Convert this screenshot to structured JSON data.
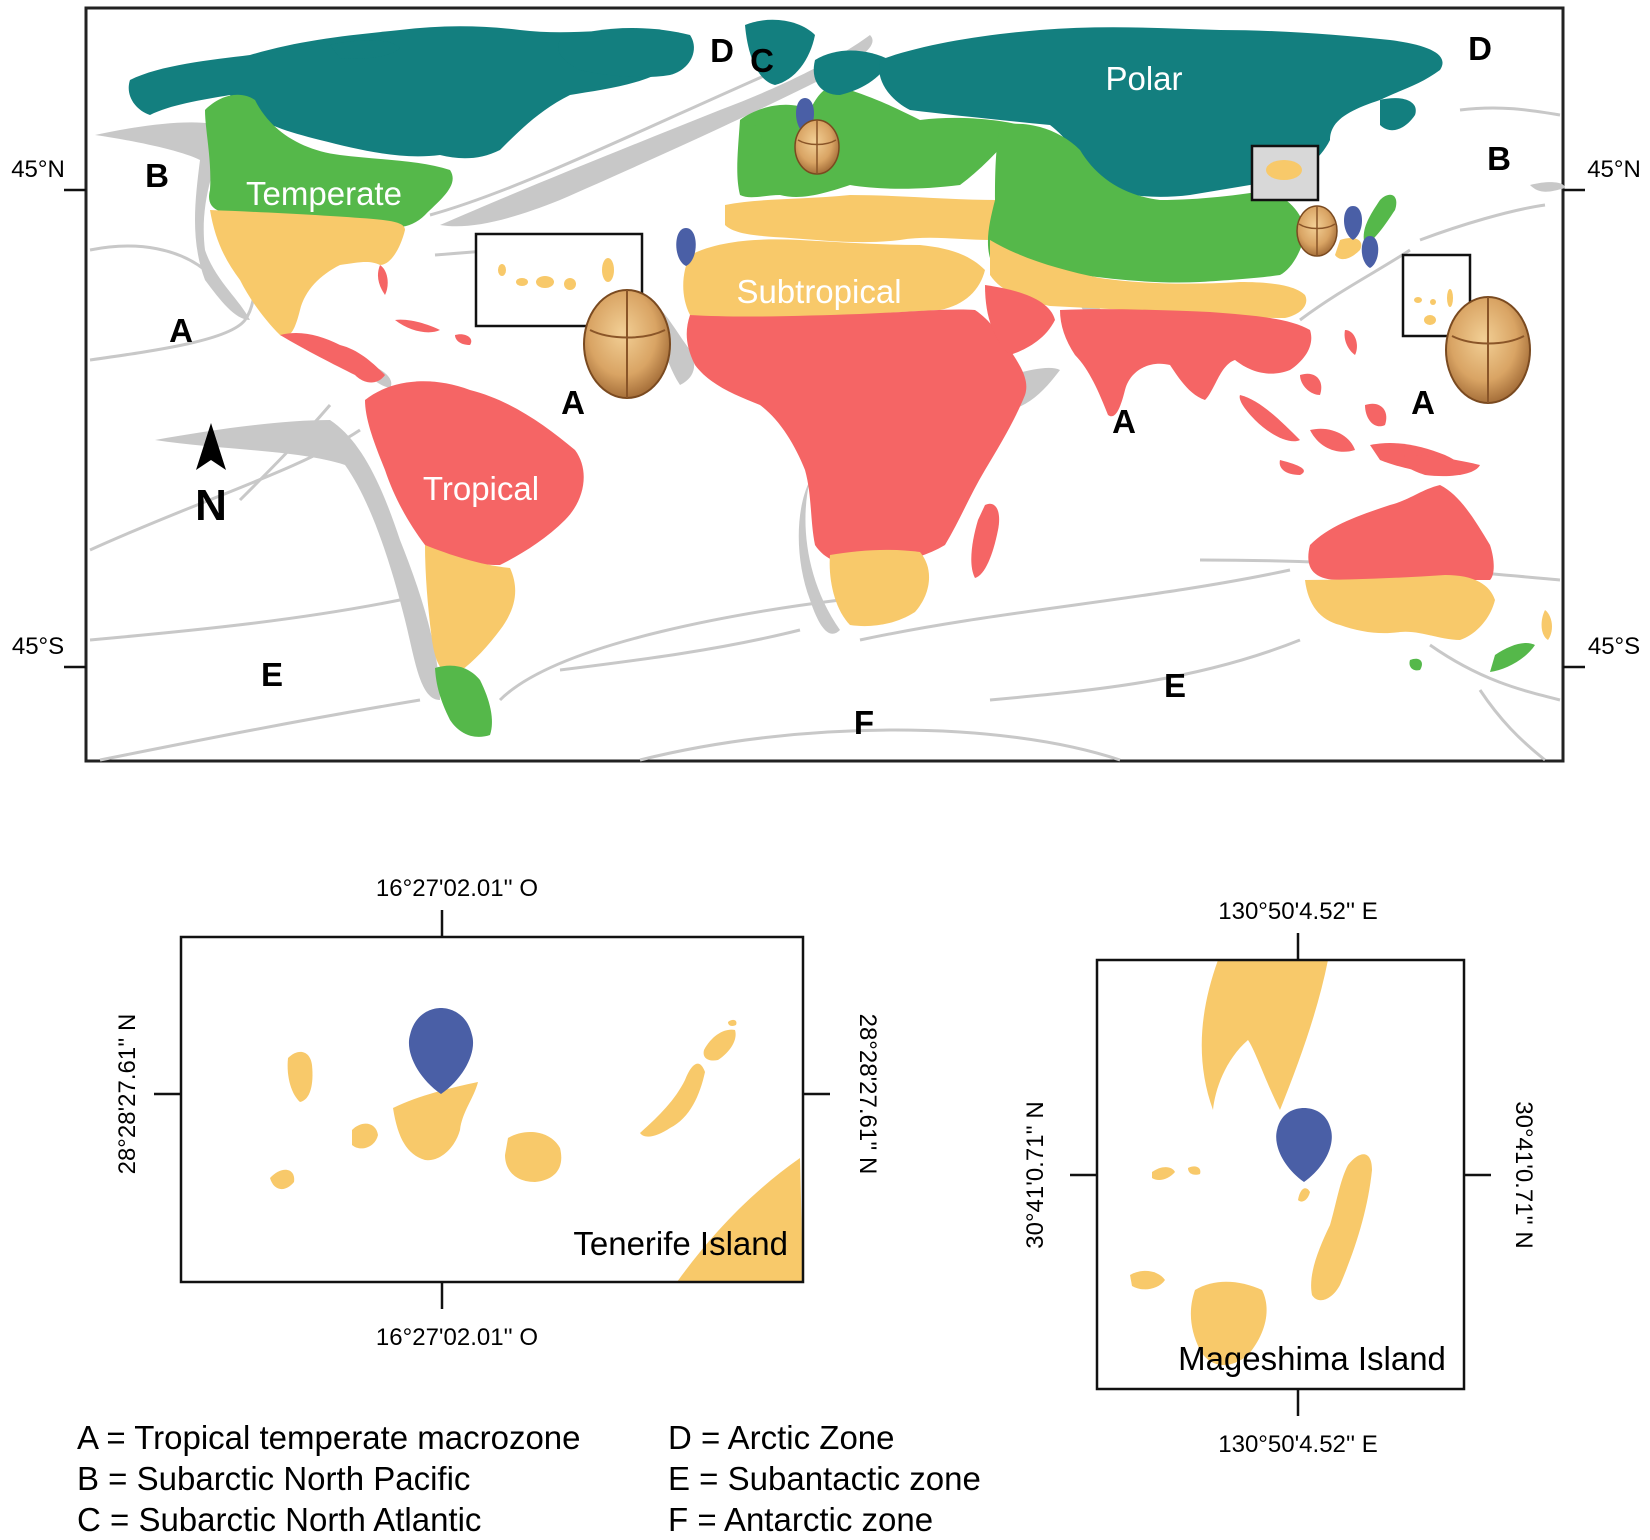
{
  "world_map": {
    "lat_labels": {
      "north": "45°N",
      "south": "45°S"
    },
    "zone_labels": {
      "polar": "Polar",
      "temperate": "Temperate",
      "subtropical": "Subtropical",
      "tropical": "Tropical"
    },
    "region_letters": {
      "a": "A",
      "b": "B",
      "c": "C",
      "d": "D",
      "e": "E",
      "f": "F"
    },
    "north_arrow": "N",
    "colors": {
      "polar": "#137f7f",
      "temperate": "#55b84a",
      "subtropical": "#f8c96a",
      "tropical": "#f56565",
      "upwelling": "#c8c8c8",
      "marker": "#4a5fa6",
      "seed": "#d9a464"
    }
  },
  "inset_tenerife": {
    "title": "Tenerife Island",
    "coord_top": "16°27'02.01'' O",
    "coord_bottom": "16°27'02.01'' O",
    "coord_left": "28°28'27.61'' N",
    "coord_right": "28°28'27.61'' N"
  },
  "inset_mageshima": {
    "title": "Mageshima Island",
    "coord_top": "130°50'4.52'' E",
    "coord_bottom": "130°50'4.52'' E",
    "coord_left": "30°41'0.71'' N",
    "coord_right": "30°41'0.71'' N"
  },
  "legend": {
    "left": [
      "A = Tropical temperate macrozone",
      "B = Subarctic North Pacific",
      "C = Subarctic North Atlantic"
    ],
    "right": [
      "D = Arctic Zone",
      "E = Subantactic zone",
      "F = Antarctic zone"
    ]
  }
}
